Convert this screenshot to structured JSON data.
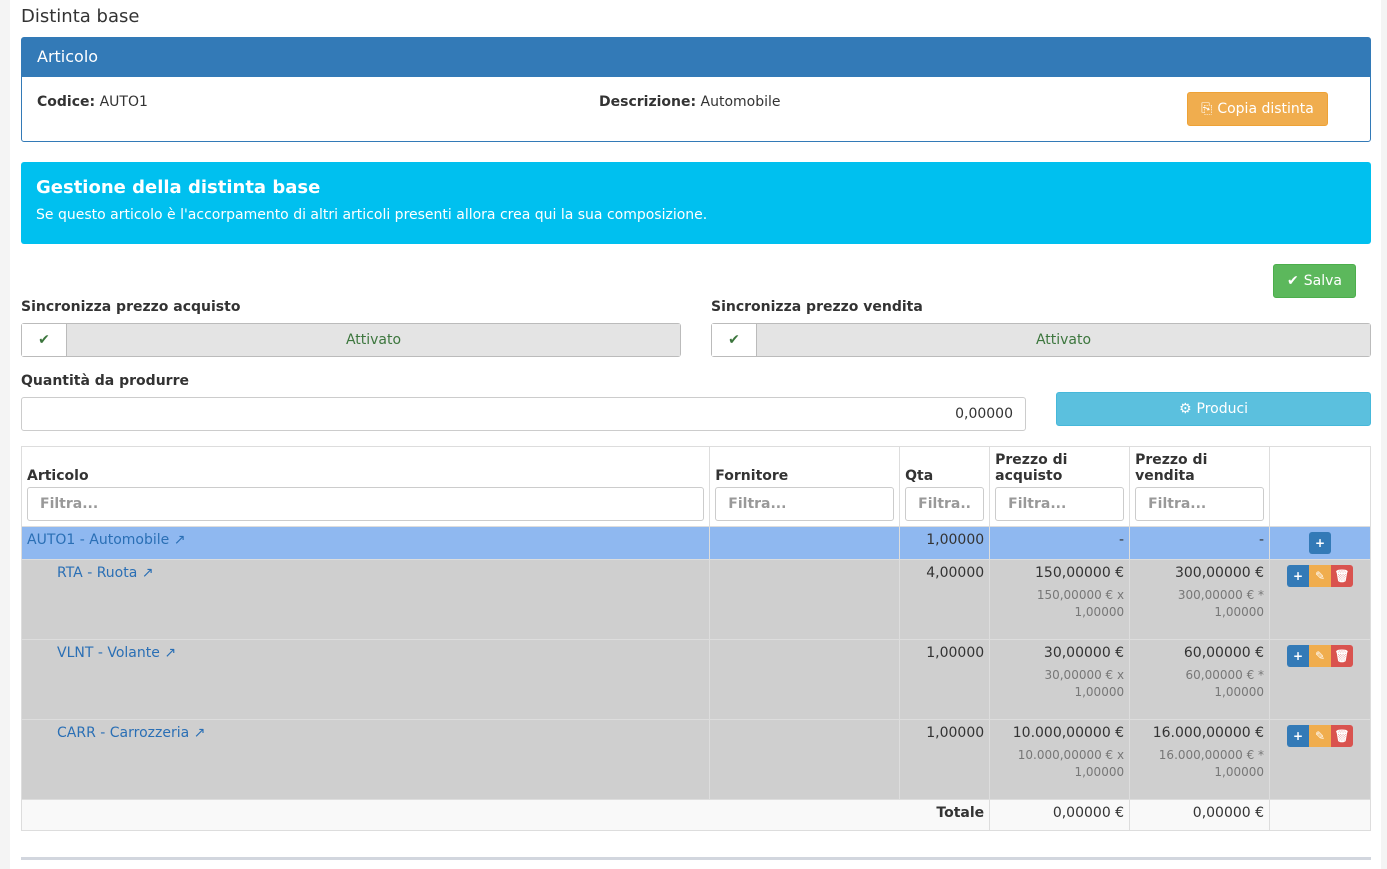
{
  "page_title": "Distinta base",
  "articolo": {
    "header": "Articolo",
    "codice_label": "Codice:",
    "codice": "AUTO1",
    "descrizione_label": "Descrizione:",
    "descrizione": "Automobile",
    "copy_button": "Copia distinta"
  },
  "callout": {
    "title": "Gestione della distinta base",
    "text": "Se questo articolo è l'accorpamento di altri articoli presenti allora crea qui la sua composizione."
  },
  "save_button": "Salva",
  "sync_acquisto": {
    "label": "Sincronizza prezzo acquisto",
    "state": "Attivato"
  },
  "sync_vendita": {
    "label": "Sincronizza prezzo vendita",
    "state": "Attivato"
  },
  "quantita": {
    "label": "Quantità da produrre",
    "value": "0,00000"
  },
  "produci_button": "Produci",
  "table": {
    "headers": {
      "articolo": "Articolo",
      "fornitore": "Fornitore",
      "qta": "Qta",
      "acquisto": "Prezzo di acquisto",
      "vendita": "Prezzo di vendita"
    },
    "filters": {
      "articolo": "Filtra...",
      "fornitore": "Filtra...",
      "qta": "Filtra..",
      "acquisto": "Filtra...",
      "vendita": "Filtra..."
    },
    "root": {
      "articolo": "AUTO1 - Automobile",
      "qta": "1,00000",
      "acquisto": "-",
      "vendita": "-"
    },
    "rows": [
      {
        "articolo": "RTA - Ruota",
        "qta": "4,00000",
        "acquisto": "150,00000 €",
        "acquisto_sub1": "150,00000 € x",
        "acquisto_sub2": "1,00000",
        "vendita": "300,00000 €",
        "vendita_sub1": "300,00000 € *",
        "vendita_sub2": "1,00000"
      },
      {
        "articolo": "VLNT - Volante",
        "qta": "1,00000",
        "acquisto": "30,00000 €",
        "acquisto_sub1": "30,00000 € x",
        "acquisto_sub2": "1,00000",
        "vendita": "60,00000 €",
        "vendita_sub1": "60,00000 € *",
        "vendita_sub2": "1,00000"
      },
      {
        "articolo": "CARR - Carrozzeria",
        "qta": "1,00000",
        "acquisto": "10.000,00000 €",
        "acquisto_sub1": "10.000,00000 € x",
        "acquisto_sub2": "1,00000",
        "vendita": "16.000,00000 €",
        "vendita_sub1": "16.000,00000 € *",
        "vendita_sub2": "1,00000"
      }
    ],
    "totale": {
      "label": "Totale",
      "acquisto": "0,00000 €",
      "vendita": "0,00000 €"
    }
  },
  "colors": {
    "primary": "#337ab7",
    "info": "#00c0ef",
    "warning": "#f0ad4e",
    "success": "#5cb85c",
    "danger": "#d9534f",
    "produci": "#5bc0de"
  }
}
